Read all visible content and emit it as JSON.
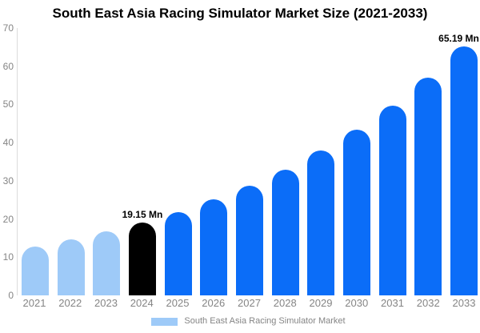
{
  "chart_data": {
    "type": "bar",
    "title": "South East Asia Racing Simulator Market Size (2021-2033)",
    "categories": [
      "2021",
      "2022",
      "2023",
      "2024",
      "2025",
      "2026",
      "2027",
      "2028",
      "2029",
      "2030",
      "2031",
      "2032",
      "2033"
    ],
    "values": [
      12.7,
      14.6,
      16.7,
      19.15,
      21.9,
      25.1,
      28.8,
      33.0,
      37.9,
      43.4,
      49.7,
      57.0,
      65.19
    ],
    "value_labels": [
      "",
      "",
      "",
      "19.15 Mn",
      "",
      "",
      "",
      "",
      "",
      "",
      "",
      "",
      "65.19 Mn"
    ],
    "bar_groups": [
      "historical",
      "historical",
      "historical",
      "base-year",
      "forecast",
      "forecast",
      "forecast",
      "forecast",
      "forecast",
      "forecast",
      "forecast",
      "forecast",
      "forecast"
    ],
    "ylim": [
      0,
      70
    ],
    "yticks": [
      70,
      60,
      50,
      40,
      30,
      20,
      10,
      0
    ],
    "xlabel": "",
    "ylabel": "",
    "grid": false,
    "legend_position": "bottom",
    "legend": [
      {
        "label": "South East Asia Racing Simulator Market",
        "swatch": "#9ECAF8"
      }
    ],
    "colors": {
      "historical": "#9ECAF8",
      "base-year": "#000000",
      "forecast": "#0B6DF8"
    }
  }
}
